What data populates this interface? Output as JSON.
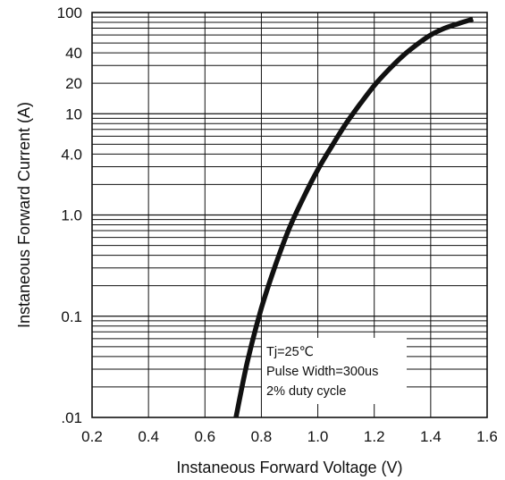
{
  "chart_data": {
    "type": "line",
    "title": "",
    "xlabel": "Instaneous Forward Voltage (V)",
    "ylabel": "Instaneous Forward Current (A)",
    "xlim": [
      0.2,
      1.6
    ],
    "ylim": [
      0.01,
      100
    ],
    "yscale": "log",
    "x_ticks": [
      0.2,
      0.4,
      0.6,
      0.8,
      1.0,
      1.2,
      1.4,
      1.6
    ],
    "x_tick_labels": [
      "0.2",
      "0.4",
      "0.6",
      "0.8",
      "1.0",
      "1.2",
      "1.4",
      "1.6"
    ],
    "y_ticks": [
      0.01,
      0.1,
      1,
      4,
      10,
      20,
      40,
      100
    ],
    "y_tick_labels": [
      ".01",
      "0.1",
      "1.0",
      "4.0",
      "10",
      "20",
      "40",
      "100"
    ],
    "grid": true,
    "annotations": [
      "Tj=25℃",
      "Pulse Width=300us",
      "2% duty cycle"
    ],
    "series": [
      {
        "x": [
          0.71,
          0.75,
          0.8,
          0.85,
          0.9,
          0.95,
          1.0,
          1.05,
          1.1,
          1.15,
          1.2,
          1.25,
          1.3,
          1.35,
          1.4,
          1.45,
          1.5,
          1.55
        ],
        "y": [
          0.01,
          0.035,
          0.12,
          0.32,
          0.75,
          1.5,
          2.8,
          4.8,
          8.0,
          12.5,
          19,
          27,
          37,
          48,
          60,
          70,
          78,
          86
        ]
      }
    ]
  }
}
